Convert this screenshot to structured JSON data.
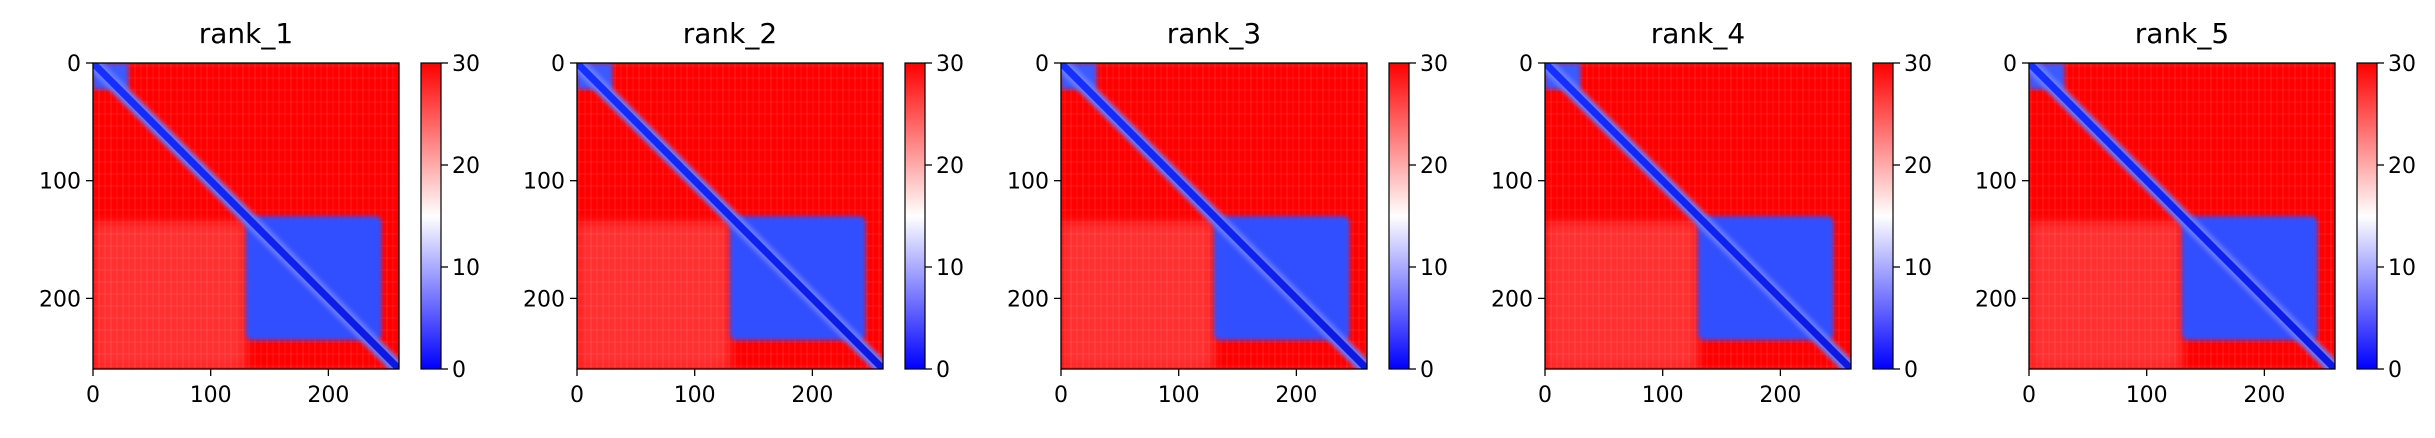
{
  "chart_data": [
    {
      "type": "heatmap",
      "title": "rank_1",
      "xlim": [
        0,
        260
      ],
      "ylim": [
        260,
        0
      ],
      "x_ticks": [
        "0",
        "100",
        "200"
      ],
      "y_ticks": [
        "0",
        "100",
        "200"
      ],
      "colorbar": {
        "ticks": [
          "0",
          "10",
          "20",
          "30"
        ],
        "range": [
          0,
          30
        ],
        "colormap": "bwr"
      },
      "blocks": [
        {
          "x": [
            130,
            245
          ],
          "y": [
            130,
            235
          ]
        }
      ]
    },
    {
      "type": "heatmap",
      "title": "rank_2",
      "xlim": [
        0,
        260
      ],
      "ylim": [
        260,
        0
      ],
      "x_ticks": [
        "0",
        "100",
        "200"
      ],
      "y_ticks": [
        "0",
        "100",
        "200"
      ],
      "colorbar": {
        "ticks": [
          "0",
          "10",
          "20",
          "30"
        ],
        "range": [
          0,
          30
        ],
        "colormap": "bwr"
      },
      "blocks": [
        {
          "x": [
            130,
            245
          ],
          "y": [
            130,
            235
          ]
        }
      ]
    },
    {
      "type": "heatmap",
      "title": "rank_3",
      "xlim": [
        0,
        260
      ],
      "ylim": [
        260,
        0
      ],
      "x_ticks": [
        "0",
        "100",
        "200"
      ],
      "y_ticks": [
        "0",
        "100",
        "200"
      ],
      "colorbar": {
        "ticks": [
          "0",
          "10",
          "20",
          "30"
        ],
        "range": [
          0,
          30
        ],
        "colormap": "bwr"
      },
      "blocks": [
        {
          "x": [
            130,
            245
          ],
          "y": [
            130,
            235
          ]
        }
      ]
    },
    {
      "type": "heatmap",
      "title": "rank_4",
      "xlim": [
        0,
        260
      ],
      "ylim": [
        260,
        0
      ],
      "x_ticks": [
        "0",
        "100",
        "200"
      ],
      "y_ticks": [
        "0",
        "100",
        "200"
      ],
      "colorbar": {
        "ticks": [
          "0",
          "10",
          "20",
          "30"
        ],
        "range": [
          0,
          30
        ],
        "colormap": "bwr"
      },
      "blocks": [
        {
          "x": [
            130,
            245
          ],
          "y": [
            130,
            235
          ]
        }
      ]
    },
    {
      "type": "heatmap",
      "title": "rank_5",
      "xlim": [
        0,
        260
      ],
      "ylim": [
        260,
        0
      ],
      "x_ticks": [
        "0",
        "100",
        "200"
      ],
      "y_ticks": [
        "0",
        "100",
        "200"
      ],
      "colorbar": {
        "ticks": [
          "0",
          "10",
          "20",
          "30"
        ],
        "range": [
          0,
          30
        ],
        "colormap": "bwr"
      },
      "blocks": [
        {
          "x": [
            130,
            245
          ],
          "y": [
            130,
            235
          ]
        }
      ]
    }
  ],
  "colors": {
    "low": "#0000ff",
    "mid": "#ffffff",
    "high": "#ff0000",
    "axis": "#000000"
  }
}
